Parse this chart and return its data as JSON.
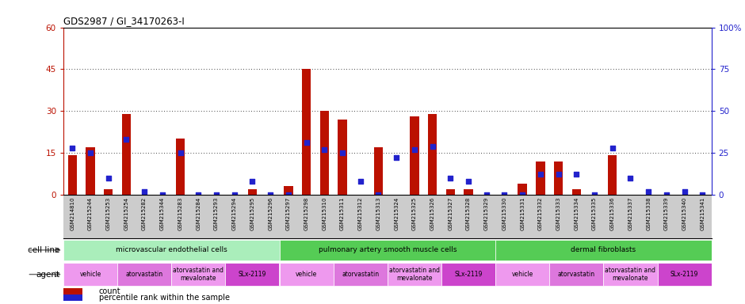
{
  "title": "GDS2987 / GI_34170263-I",
  "samples": [
    "GSM214810",
    "GSM215244",
    "GSM215253",
    "GSM215254",
    "GSM215282",
    "GSM215344",
    "GSM215283",
    "GSM215284",
    "GSM215293",
    "GSM215294",
    "GSM215295",
    "GSM215296",
    "GSM215297",
    "GSM215298",
    "GSM215310",
    "GSM215311",
    "GSM215312",
    "GSM215313",
    "GSM215324",
    "GSM215325",
    "GSM215326",
    "GSM215327",
    "GSM215328",
    "GSM215329",
    "GSM215330",
    "GSM215331",
    "GSM215332",
    "GSM215333",
    "GSM215334",
    "GSM215335",
    "GSM215336",
    "GSM215337",
    "GSM215338",
    "GSM215339",
    "GSM215340",
    "GSM215341"
  ],
  "counts": [
    14,
    17,
    2,
    29,
    0,
    0,
    20,
    0,
    0,
    0,
    2,
    0,
    3,
    45,
    30,
    27,
    0,
    17,
    0,
    28,
    29,
    2,
    2,
    0,
    0,
    4,
    12,
    12,
    2,
    0,
    14,
    0,
    0,
    0,
    0,
    0
  ],
  "percentiles": [
    28,
    25,
    10,
    33,
    2,
    0,
    25,
    0,
    0,
    0,
    8,
    0,
    0,
    31,
    27,
    25,
    8,
    0,
    22,
    27,
    29,
    10,
    8,
    0,
    0,
    0,
    12,
    12,
    12,
    0,
    28,
    10,
    2,
    0,
    2,
    0
  ],
  "ylim_left": [
    0,
    60
  ],
  "ylim_right": [
    0,
    100
  ],
  "yticks_left": [
    0,
    15,
    30,
    45,
    60
  ],
  "yticks_right": [
    0,
    25,
    50,
    75,
    100
  ],
  "bar_color": "#bb1100",
  "dot_color": "#2222cc",
  "grid_color": "#000000",
  "plot_bg": "#ffffff",
  "sample_bg": "#cccccc",
  "cell_line_color_light": "#aaeebb",
  "cell_line_color_mid": "#55cc55",
  "cell_line_color_dark": "#33bb33",
  "agent_color_vehicle": "#ee99ee",
  "agent_color_ator": "#dd77dd",
  "agent_color_combo": "#dd99dd",
  "agent_color_slx": "#cc44cc",
  "cell_line_groups": [
    {
      "label": "microvascular endothelial cells",
      "start": 0,
      "end": 12,
      "color": "#aaeebb"
    },
    {
      "label": "pulmonary artery smooth muscle cells",
      "start": 12,
      "end": 24,
      "color": "#55cc55"
    },
    {
      "label": "dermal fibroblasts",
      "start": 24,
      "end": 36,
      "color": "#55cc55"
    }
  ],
  "agent_groups": [
    {
      "label": "vehicle",
      "start": 0,
      "end": 3,
      "color": "#ee99ee"
    },
    {
      "label": "atorvastatin",
      "start": 3,
      "end": 6,
      "color": "#dd77dd"
    },
    {
      "label": "atorvastatin and\nmevalonate",
      "start": 6,
      "end": 9,
      "color": "#ee99ee"
    },
    {
      "label": "SLx-2119",
      "start": 9,
      "end": 12,
      "color": "#cc44cc"
    },
    {
      "label": "vehicle",
      "start": 12,
      "end": 15,
      "color": "#ee99ee"
    },
    {
      "label": "atorvastatin",
      "start": 15,
      "end": 18,
      "color": "#dd77dd"
    },
    {
      "label": "atorvastatin and\nmevalonate",
      "start": 18,
      "end": 21,
      "color": "#ee99ee"
    },
    {
      "label": "SLx-2119",
      "start": 21,
      "end": 24,
      "color": "#cc44cc"
    },
    {
      "label": "vehicle",
      "start": 24,
      "end": 27,
      "color": "#ee99ee"
    },
    {
      "label": "atorvastatin",
      "start": 27,
      "end": 30,
      "color": "#dd77dd"
    },
    {
      "label": "atorvastatin and\nmevalonate",
      "start": 30,
      "end": 33,
      "color": "#ee99ee"
    },
    {
      "label": "SLx-2119",
      "start": 33,
      "end": 36,
      "color": "#cc44cc"
    }
  ],
  "legend_count_label": "count",
  "legend_pct_label": "percentile rank within the sample"
}
